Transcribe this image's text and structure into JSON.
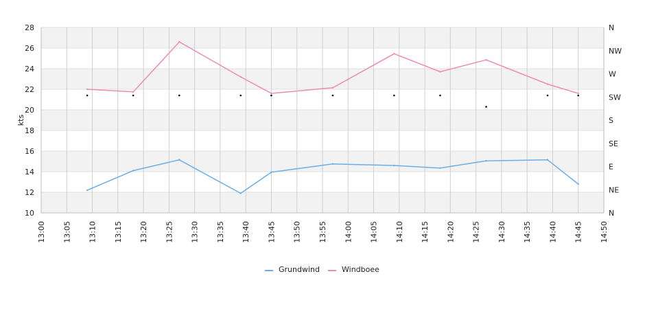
{
  "chart_data": {
    "type": "line",
    "xlabel": "",
    "ylabel": "kts",
    "x_ticks": [
      "13:00",
      "13:05",
      "13:10",
      "13:15",
      "13:20",
      "13:25",
      "13:30",
      "13:35",
      "13:40",
      "13:45",
      "13:50",
      "13:55",
      "14:00",
      "14:05",
      "14:10",
      "14:15",
      "14:20",
      "14:25",
      "14:30",
      "14:35",
      "14:40",
      "14:45",
      "14:50"
    ],
    "xlim": [
      "13:00",
      "14:50"
    ],
    "ylim": [
      10,
      28
    ],
    "y_ticks": [
      10,
      12,
      14,
      16,
      18,
      20,
      22,
      24,
      26,
      28
    ],
    "y2_ticks": [
      "N",
      "NE",
      "E",
      "SE",
      "S",
      "SW",
      "W",
      "NW",
      "N"
    ],
    "grid": true,
    "legend_position": "bottom",
    "series": [
      {
        "name": "Grundwind",
        "color": "#6aaee8",
        "points": [
          [
            "13:09",
            12.2
          ],
          [
            "13:18",
            14.1
          ],
          [
            "13:27",
            15.15
          ],
          [
            "13:39",
            11.9
          ],
          [
            "13:45",
            13.95
          ],
          [
            "13:57",
            14.75
          ],
          [
            "14:09",
            14.6
          ],
          [
            "14:18",
            14.35
          ],
          [
            "14:27",
            15.05
          ],
          [
            "14:39",
            15.15
          ],
          [
            "14:45",
            12.8
          ]
        ]
      },
      {
        "name": "Windboee",
        "color": "#ee8ab5",
        "points": [
          [
            "13:09",
            22.0
          ],
          [
            "13:18",
            21.75
          ],
          [
            "13:27",
            26.6
          ],
          [
            "13:39",
            23.2
          ],
          [
            "13:45",
            21.6
          ],
          [
            "13:57",
            22.15
          ],
          [
            "14:09",
            25.45
          ],
          [
            "14:18",
            23.7
          ],
          [
            "14:27",
            24.85
          ],
          [
            "14:39",
            22.5
          ],
          [
            "14:45",
            21.6
          ]
        ]
      }
    ],
    "direction_markers": [
      [
        "13:09",
        21.4
      ],
      [
        "13:18",
        21.4
      ],
      [
        "13:27",
        21.4
      ],
      [
        "13:39",
        21.4
      ],
      [
        "13:45",
        21.4
      ],
      [
        "13:57",
        21.4
      ],
      [
        "14:09",
        21.4
      ],
      [
        "14:18",
        21.4
      ],
      [
        "14:27",
        20.3
      ],
      [
        "14:39",
        21.4
      ],
      [
        "14:45",
        21.4
      ]
    ]
  }
}
